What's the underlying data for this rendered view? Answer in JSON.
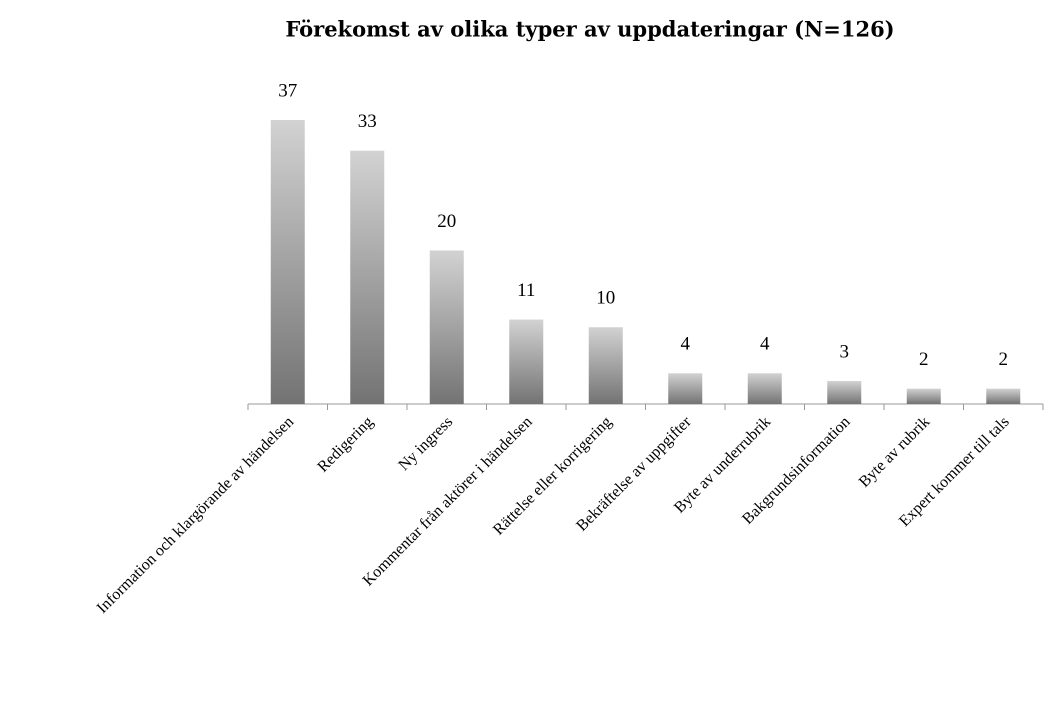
{
  "chart_data": {
    "type": "bar",
    "title": "Förekomst av olika typer av uppdateringar (N=126)",
    "categories": [
      "Information och klargörande av händelsen",
      "Redigering",
      "Ny ingress",
      "Kommentar från aktörer i händelsen",
      "Rättelse eller korrigering",
      "Bekräftelse av uppgifter",
      "Byte av underrubrik",
      "Bakgrundsinformation",
      "Byte av rubrik",
      "Expert kommer till tals"
    ],
    "values": [
      37,
      33,
      20,
      11,
      10,
      4,
      4,
      3,
      2,
      2
    ]
  }
}
